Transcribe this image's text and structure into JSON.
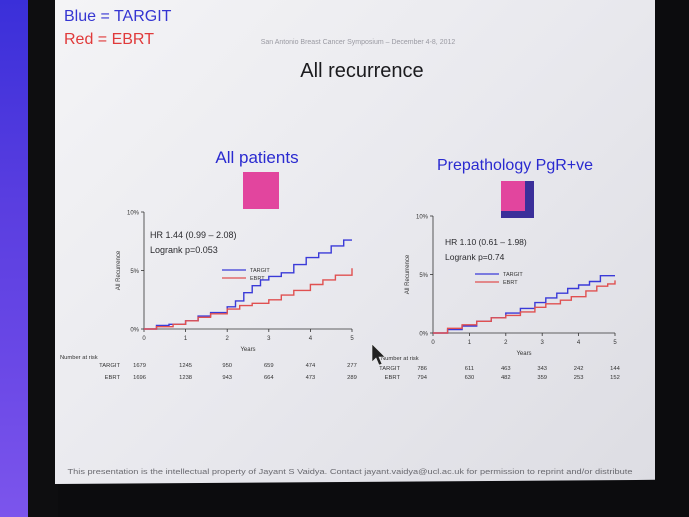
{
  "slide": {
    "legend_line1": "Blue = TARGIT",
    "legend_line2": "Red  = EBRT",
    "header_text": "San Antonio Breast Cancer Symposium – December 4-8, 2012",
    "title": "All recurrence",
    "footer_text": "This presentation is the intellectual property of Jayant S Vaidya.  Contact jayant.vaidya@ucl.ac.uk for permission to reprint and/or distribute"
  },
  "colors": {
    "targit": "#3a3ad8",
    "ebrt": "#e05050",
    "patch_pink": "#e2459e",
    "patch_blue": "#3b2f9a"
  },
  "chart_data": [
    {
      "type": "line",
      "title": "All patients",
      "annotation": [
        "HR 1.44 (0.99 – 2.08)",
        "Logrank  p=0.053"
      ],
      "xlabel": "Years",
      "ylabel": "All Recurrence",
      "x_ticks": [
        "0",
        "1",
        "2",
        "3",
        "4",
        "5"
      ],
      "y_ticks": [
        "0%",
        "5%",
        "10%"
      ],
      "xlim": [
        0,
        5
      ],
      "ylim": [
        0,
        10
      ],
      "legend": [
        "TARGIT",
        "EBRT"
      ],
      "legend_position": "center-right",
      "grid": false,
      "series": [
        {
          "name": "TARGIT",
          "points": [
            [
              0,
              0
            ],
            [
              0.3,
              0.3
            ],
            [
              0.6,
              0.4
            ],
            [
              1.0,
              0.7
            ],
            [
              1.3,
              1.1
            ],
            [
              1.6,
              1.4
            ],
            [
              2.0,
              1.9
            ],
            [
              2.2,
              2.4
            ],
            [
              2.4,
              3.1
            ],
            [
              2.6,
              3.7
            ],
            [
              2.8,
              4.2
            ],
            [
              3.0,
              4.5
            ],
            [
              3.3,
              4.8
            ],
            [
              3.6,
              5.5
            ],
            [
              3.9,
              6.1
            ],
            [
              4.2,
              6.5
            ],
            [
              4.5,
              7.1
            ],
            [
              4.8,
              7.6
            ],
            [
              5.0,
              7.6
            ]
          ]
        },
        {
          "name": "EBRT",
          "points": [
            [
              0,
              0
            ],
            [
              0.3,
              0.2
            ],
            [
              0.7,
              0.4
            ],
            [
              1.0,
              0.7
            ],
            [
              1.3,
              1.0
            ],
            [
              1.6,
              1.3
            ],
            [
              2.0,
              1.7
            ],
            [
              2.3,
              2.0
            ],
            [
              2.6,
              2.2
            ],
            [
              3.0,
              2.5
            ],
            [
              3.3,
              2.9
            ],
            [
              3.6,
              3.3
            ],
            [
              4.0,
              3.8
            ],
            [
              4.3,
              4.2
            ],
            [
              4.6,
              4.6
            ],
            [
              5.0,
              5.2
            ]
          ]
        }
      ],
      "risk_table": {
        "header": "Number at risk",
        "rows": [
          {
            "label": "TARGIT",
            "n": "1679",
            "values": [
              "1245",
              "950",
              "659",
              "474",
              "277"
            ]
          },
          {
            "label": "EBRT",
            "n": "1696",
            "values": [
              "1238",
              "943",
              "664",
              "473",
              "289"
            ]
          }
        ]
      }
    },
    {
      "type": "line",
      "title": "Prepathology PgR+ve",
      "annotation": [
        "HR 1.10 (0.61 – 1.98)",
        "Logrank  p=0.74"
      ],
      "xlabel": "Years",
      "ylabel": "All Recurrence",
      "x_ticks": [
        "0",
        "1",
        "2",
        "3",
        "4",
        "5"
      ],
      "y_ticks": [
        "0%",
        "5%",
        "10%"
      ],
      "xlim": [
        0,
        5
      ],
      "ylim": [
        0,
        10
      ],
      "legend": [
        "TARGIT",
        "EBRT"
      ],
      "legend_position": "center-right",
      "grid": false,
      "series": [
        {
          "name": "TARGIT",
          "points": [
            [
              0,
              0
            ],
            [
              0.4,
              0.3
            ],
            [
              0.8,
              0.6
            ],
            [
              1.2,
              1.0
            ],
            [
              1.6,
              1.3
            ],
            [
              2.0,
              1.7
            ],
            [
              2.4,
              2.1
            ],
            [
              2.8,
              2.6
            ],
            [
              3.1,
              3.0
            ],
            [
              3.4,
              3.4
            ],
            [
              3.7,
              3.8
            ],
            [
              4.0,
              4.1
            ],
            [
              4.3,
              4.4
            ],
            [
              4.6,
              4.9
            ],
            [
              5.0,
              4.9
            ]
          ]
        },
        {
          "name": "EBRT",
          "points": [
            [
              0,
              0
            ],
            [
              0.4,
              0.4
            ],
            [
              0.8,
              0.7
            ],
            [
              1.2,
              1.0
            ],
            [
              1.6,
              1.3
            ],
            [
              2.0,
              1.5
            ],
            [
              2.4,
              1.8
            ],
            [
              2.8,
              2.2
            ],
            [
              3.1,
              2.5
            ],
            [
              3.5,
              2.8
            ],
            [
              3.8,
              3.1
            ],
            [
              4.2,
              3.6
            ],
            [
              4.5,
              4.0
            ],
            [
              4.8,
              4.2
            ],
            [
              5.0,
              4.5
            ]
          ]
        }
      ],
      "risk_table": {
        "header": "Number at risk",
        "rows": [
          {
            "label": "TARGIT",
            "n": "786",
            "values": [
              "611",
              "463",
              "343",
              "242",
              "144"
            ]
          },
          {
            "label": "EBRT",
            "n": "794",
            "values": [
              "630",
              "482",
              "359",
              "253",
              "152"
            ]
          }
        ]
      }
    }
  ]
}
